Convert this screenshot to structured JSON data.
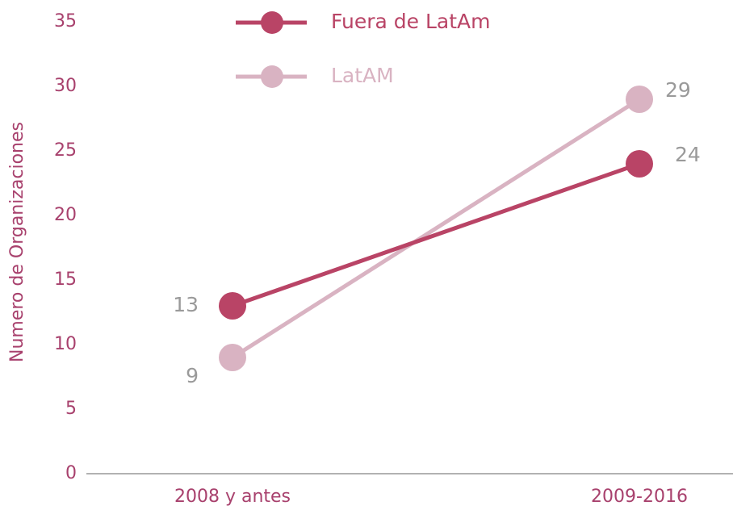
{
  "chart_data": {
    "type": "line",
    "categories": [
      "2008 y antes",
      "2009-2016"
    ],
    "series": [
      {
        "name": "Fuera de LatAm",
        "color": "#b94466",
        "values": [
          13,
          24
        ]
      },
      {
        "name": "LatAM",
        "color": "#d9b3c2",
        "values": [
          9,
          29
        ]
      }
    ],
    "y_label": "Numero de Organizaciones",
    "ylim": [
      0,
      35
    ],
    "yticks": [
      0,
      5,
      10,
      15,
      20,
      25,
      30,
      35
    ],
    "grid": false
  }
}
